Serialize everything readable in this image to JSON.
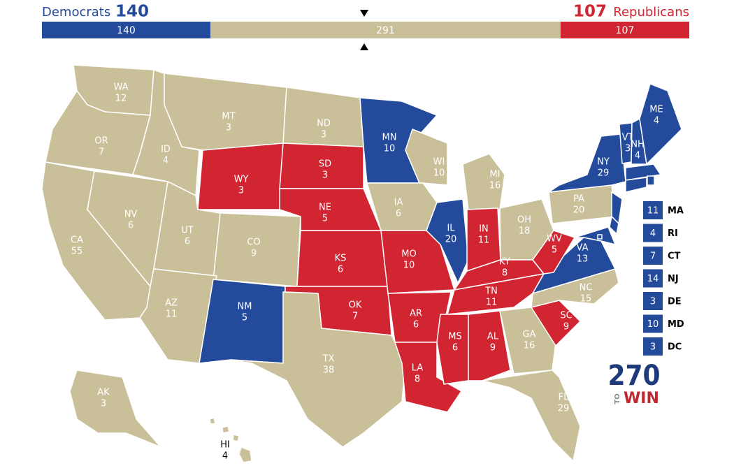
{
  "header": {
    "dem_label": "Democrats",
    "dem_total": 140,
    "tossup_total": 291,
    "rep_total": 107,
    "rep_label": "Republicans"
  },
  "colors": {
    "dem": "#244a9b",
    "rep": "#d22532",
    "tossup": "#c9bf98"
  },
  "states": [
    {
      "abbr": "WA",
      "ev": 12,
      "party": "tossup"
    },
    {
      "abbr": "OR",
      "ev": 7,
      "party": "tossup"
    },
    {
      "abbr": "CA",
      "ev": 55,
      "party": "tossup"
    },
    {
      "abbr": "NV",
      "ev": 6,
      "party": "tossup"
    },
    {
      "abbr": "ID",
      "ev": 4,
      "party": "tossup"
    },
    {
      "abbr": "MT",
      "ev": 3,
      "party": "tossup"
    },
    {
      "abbr": "WY",
      "ev": 3,
      "party": "rep"
    },
    {
      "abbr": "UT",
      "ev": 6,
      "party": "tossup"
    },
    {
      "abbr": "CO",
      "ev": 9,
      "party": "tossup"
    },
    {
      "abbr": "AZ",
      "ev": 11,
      "party": "tossup"
    },
    {
      "abbr": "NM",
      "ev": 5,
      "party": "dem"
    },
    {
      "abbr": "ND",
      "ev": 3,
      "party": "tossup"
    },
    {
      "abbr": "SD",
      "ev": 3,
      "party": "rep"
    },
    {
      "abbr": "NE",
      "ev": 5,
      "party": "rep"
    },
    {
      "abbr": "KS",
      "ev": 6,
      "party": "rep"
    },
    {
      "abbr": "OK",
      "ev": 7,
      "party": "rep"
    },
    {
      "abbr": "TX",
      "ev": 38,
      "party": "tossup"
    },
    {
      "abbr": "MN",
      "ev": 10,
      "party": "dem"
    },
    {
      "abbr": "IA",
      "ev": 6,
      "party": "tossup"
    },
    {
      "abbr": "MO",
      "ev": 10,
      "party": "rep"
    },
    {
      "abbr": "AR",
      "ev": 6,
      "party": "rep"
    },
    {
      "abbr": "LA",
      "ev": 8,
      "party": "rep"
    },
    {
      "abbr": "WI",
      "ev": 10,
      "party": "tossup"
    },
    {
      "abbr": "IL",
      "ev": 20,
      "party": "dem"
    },
    {
      "abbr": "MI",
      "ev": 16,
      "party": "tossup"
    },
    {
      "abbr": "IN",
      "ev": 11,
      "party": "rep"
    },
    {
      "abbr": "OH",
      "ev": 18,
      "party": "tossup"
    },
    {
      "abbr": "KY",
      "ev": 8,
      "party": "rep"
    },
    {
      "abbr": "TN",
      "ev": 11,
      "party": "rep"
    },
    {
      "abbr": "MS",
      "ev": 6,
      "party": "rep"
    },
    {
      "abbr": "AL",
      "ev": 9,
      "party": "rep"
    },
    {
      "abbr": "GA",
      "ev": 16,
      "party": "tossup"
    },
    {
      "abbr": "FL",
      "ev": 29,
      "party": "tossup"
    },
    {
      "abbr": "SC",
      "ev": 9,
      "party": "rep"
    },
    {
      "abbr": "NC",
      "ev": 15,
      "party": "tossup"
    },
    {
      "abbr": "VA",
      "ev": 13,
      "party": "dem"
    },
    {
      "abbr": "WV",
      "ev": 5,
      "party": "rep"
    },
    {
      "abbr": "PA",
      "ev": 20,
      "party": "tossup"
    },
    {
      "abbr": "NY",
      "ev": 29,
      "party": "dem"
    },
    {
      "abbr": "VT",
      "ev": 3,
      "party": "dem"
    },
    {
      "abbr": "NH",
      "ev": 4,
      "party": "dem"
    },
    {
      "abbr": "ME",
      "ev": 4,
      "party": "dem"
    },
    {
      "abbr": "AK",
      "ev": 3,
      "party": "tossup"
    },
    {
      "abbr": "HI",
      "ev": 4,
      "party": "tossup"
    },
    {
      "abbr": "MA",
      "ev": 11,
      "party": "dem",
      "callout": true
    },
    {
      "abbr": "RI",
      "ev": 4,
      "party": "dem",
      "callout": true
    },
    {
      "abbr": "CT",
      "ev": 7,
      "party": "dem",
      "callout": true
    },
    {
      "abbr": "NJ",
      "ev": 14,
      "party": "dem",
      "callout": true
    },
    {
      "abbr": "DE",
      "ev": 3,
      "party": "dem",
      "callout": true
    },
    {
      "abbr": "MD",
      "ev": 10,
      "party": "dem",
      "callout": true
    },
    {
      "abbr": "DC",
      "ev": 3,
      "party": "dem",
      "callout": true
    }
  ],
  "logo": {
    "number": "270",
    "to": "TO",
    "win": "WIN"
  }
}
